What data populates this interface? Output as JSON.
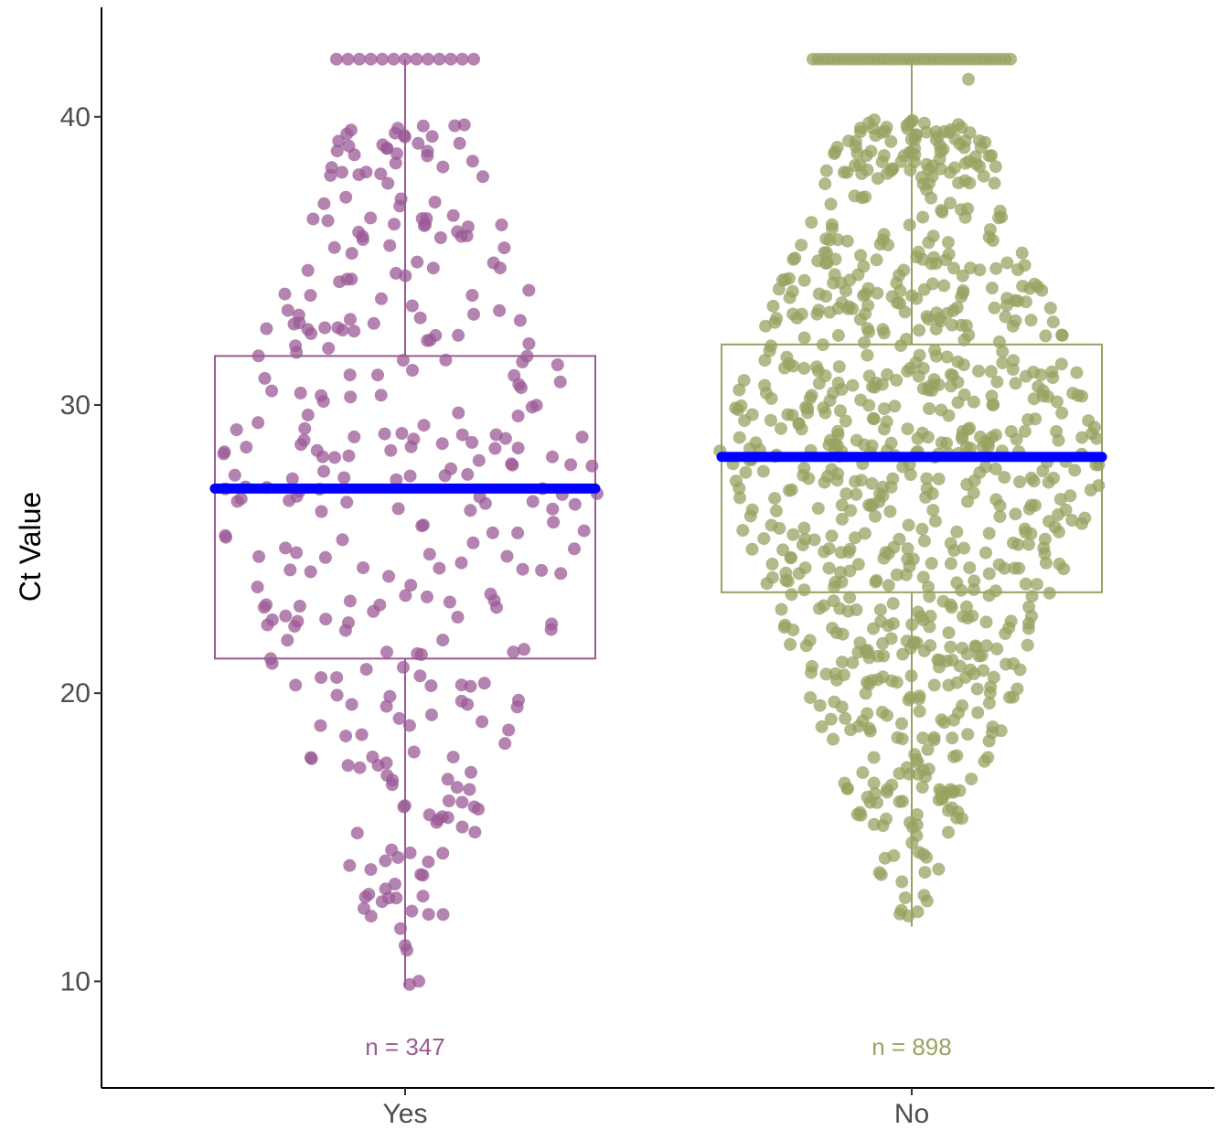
{
  "chart_data": {
    "type": "boxplot-beeswarm",
    "title": "",
    "xlabel": "",
    "ylabel": "Ct Value",
    "ylim": [
      6.3,
      43.8
    ],
    "yticks": [
      10,
      20,
      30,
      40
    ],
    "ytick_labels": [
      "10",
      "20",
      "30",
      "40"
    ],
    "grid": false,
    "legend": "none",
    "median_line_color": "#0000ff",
    "groups": [
      {
        "name": "Yes",
        "color": "#9b5a96",
        "n_label": "n = 347",
        "n": 347,
        "q1": 21.2,
        "median": 27.1,
        "q3": 31.7,
        "whisker_low": 9.8,
        "whisker_high": 42.0,
        "capped_count": 13,
        "cap_value": 42.0,
        "min": 9.8
      },
      {
        "name": "No",
        "color": "#9aa262",
        "n_label": "n = 898",
        "n": 898,
        "q1": 23.5,
        "median": 28.2,
        "q3": 32.1,
        "whisker_low": 11.9,
        "whisker_high": 42.0,
        "capped_count": 40,
        "cap_value": 42.0,
        "min": 11.9,
        "outliers": [
          41.3
        ]
      }
    ]
  }
}
